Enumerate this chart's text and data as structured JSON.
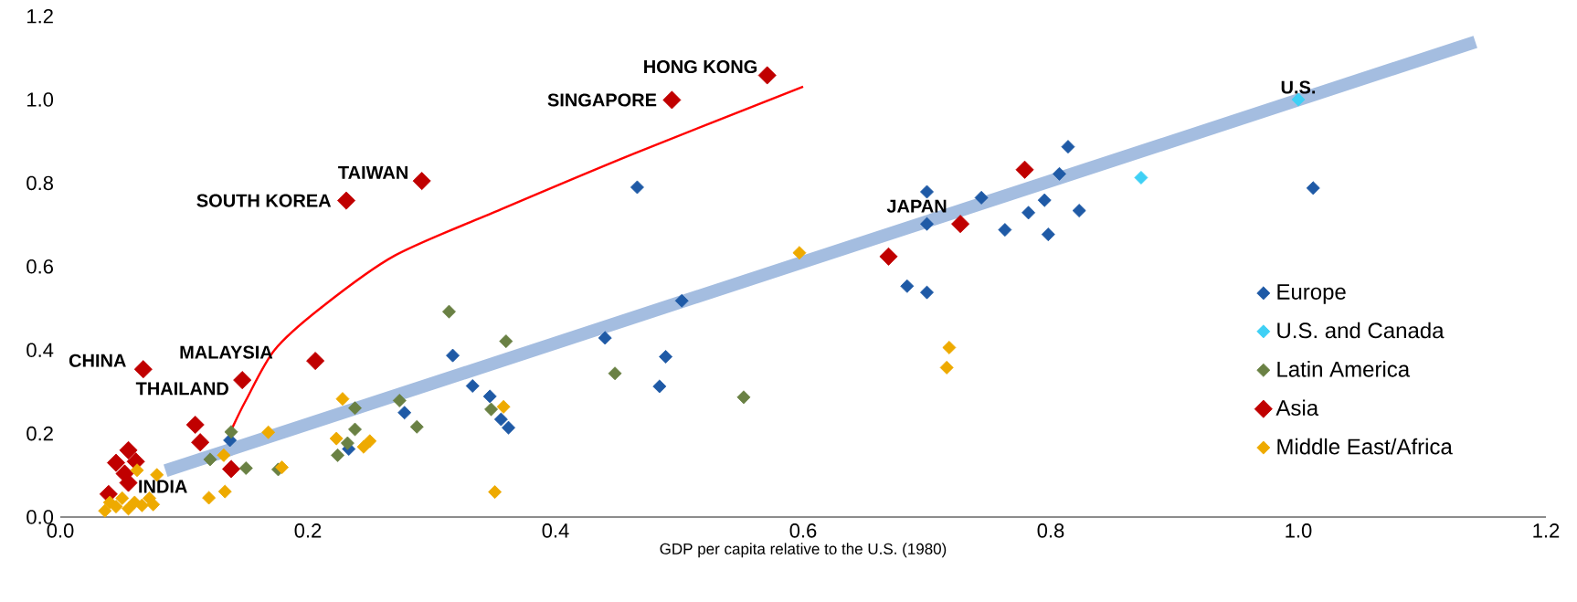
{
  "chart_data": {
    "type": "scatter",
    "xlabel": "GDP per capita relative to the U.S. (1980)",
    "xlim": [
      0,
      1.2
    ],
    "ylim": [
      0,
      1.2
    ],
    "xticks": [
      {
        "value": 0,
        "label": "0.0"
      },
      {
        "value": 0.2,
        "label": "0.2"
      },
      {
        "value": 0.4,
        "label": "0.4"
      },
      {
        "value": 0.6,
        "label": "0.6"
      },
      {
        "value": 0.8,
        "label": "0.8"
      },
      {
        "value": 1.0,
        "label": "1.0"
      },
      {
        "value": 1.2,
        "label": "1.2"
      }
    ],
    "yticks": [
      {
        "value": 0,
        "label": "0.0"
      },
      {
        "value": 0.2,
        "label": "0.2"
      },
      {
        "value": 0.4,
        "label": "0.4"
      },
      {
        "value": 0.6,
        "label": "0.6"
      },
      {
        "value": 0.8,
        "label": "0.8"
      },
      {
        "value": 1.0,
        "label": "1.0"
      },
      {
        "value": 1.2,
        "label": "1.2"
      }
    ],
    "marker": "diamond",
    "legend": "right",
    "grid": false,
    "series": [
      {
        "type": "line",
        "marker": "none",
        "color": "#a4bde0",
        "x": [
          0.085,
          1.143
        ],
        "values": [
          0.111,
          1.138
        ]
      },
      {
        "type": "line",
        "marker": "none",
        "color": "#ff0000",
        "x": [
          0.139,
          0.15,
          0.173,
          0.21,
          0.27,
          0.356,
          0.463,
          0.6
        ],
        "values": [
          0.214,
          0.28,
          0.4,
          0.5,
          0.626,
          0.737,
          0.87,
          1.031
        ]
      },
      {
        "name": "Europe",
        "color": "#1f5aa6",
        "x": [
          0.137,
          0.233,
          0.278,
          0.317,
          0.333,
          0.347,
          0.356,
          0.362,
          0.44,
          0.466,
          0.484,
          0.489,
          0.502,
          0.684,
          0.7,
          0.7,
          0.7,
          0.744,
          0.763,
          0.782,
          0.795,
          0.798,
          0.807,
          0.814,
          0.823,
          1.012
        ],
        "values": [
          0.184,
          0.163,
          0.25,
          0.387,
          0.314,
          0.289,
          0.234,
          0.214,
          0.429,
          0.79,
          0.313,
          0.384,
          0.518,
          0.553,
          0.538,
          0.702,
          0.779,
          0.765,
          0.688,
          0.729,
          0.759,
          0.677,
          0.822,
          0.887,
          0.734,
          0.788
        ]
      },
      {
        "name": "U.S. and Canada",
        "color": "#3fd0f5",
        "x": [
          0.873,
          1.0
        ],
        "values": [
          0.813,
          1.0
        ]
      },
      {
        "name": "Latin America",
        "color": "#6a8144",
        "x": [
          0.121,
          0.138,
          0.15,
          0.176,
          0.224,
          0.232,
          0.238,
          0.238,
          0.274,
          0.288,
          0.314,
          0.348,
          0.36,
          0.448,
          0.552
        ],
        "values": [
          0.138,
          0.204,
          0.117,
          0.114,
          0.148,
          0.177,
          0.21,
          0.261,
          0.279,
          0.216,
          0.492,
          0.258,
          0.421,
          0.344,
          0.287
        ]
      },
      {
        "name": "Asia",
        "color": "#c00000",
        "x": [
          0.039,
          0.052,
          0.045,
          0.055,
          0.055,
          0.061,
          0.067,
          0.109,
          0.113,
          0.138,
          0.147,
          0.206,
          0.231,
          0.292,
          0.494,
          0.571,
          0.669,
          0.727,
          0.779
        ],
        "values": [
          0.055,
          0.104,
          0.13,
          0.082,
          0.16,
          0.133,
          0.354,
          0.221,
          0.179,
          0.115,
          0.328,
          0.374,
          0.758,
          0.805,
          0.999,
          1.058,
          0.624,
          0.702,
          0.832
        ]
      },
      {
        "name": "Middle East/Africa",
        "color": "#eeaa00",
        "x": [
          0.036,
          0.04,
          0.045,
          0.05,
          0.055,
          0.06,
          0.066,
          0.072,
          0.075,
          0.062,
          0.078,
          0.12,
          0.132,
          0.133,
          0.168,
          0.179,
          0.223,
          0.228,
          0.245,
          0.25,
          0.351,
          0.358,
          0.597,
          0.716,
          0.718
        ],
        "values": [
          0.015,
          0.035,
          0.025,
          0.045,
          0.02,
          0.035,
          0.028,
          0.045,
          0.03,
          0.112,
          0.101,
          0.046,
          0.148,
          0.061,
          0.203,
          0.119,
          0.188,
          0.283,
          0.168,
          0.182,
          0.06,
          0.264,
          0.633,
          0.358,
          0.406
        ]
      }
    ],
    "annotations": [
      {
        "text": "HONG KONG",
        "x": 0.571,
        "y": 1.058
      },
      {
        "text": "SINGAPORE",
        "x": 0.494,
        "y": 0.999
      },
      {
        "text": "TAIWAN",
        "x": 0.292,
        "y": 0.805
      },
      {
        "text": "SOUTH KOREA",
        "x": 0.231,
        "y": 0.758
      },
      {
        "text": "CHINA",
        "x": 0.067,
        "y": 0.354
      },
      {
        "text": "MALAYSIA",
        "x": 0.206,
        "y": 0.374
      },
      {
        "text": "THAILAND",
        "x": 0.147,
        "y": 0.328
      },
      {
        "text": "INDIA",
        "x": 0.055,
        "y": 0.082
      },
      {
        "text": "JAPAN",
        "x": 0.727,
        "y": 0.702
      },
      {
        "text": "U.S.",
        "x": 1.0,
        "y": 1.0
      }
    ]
  }
}
